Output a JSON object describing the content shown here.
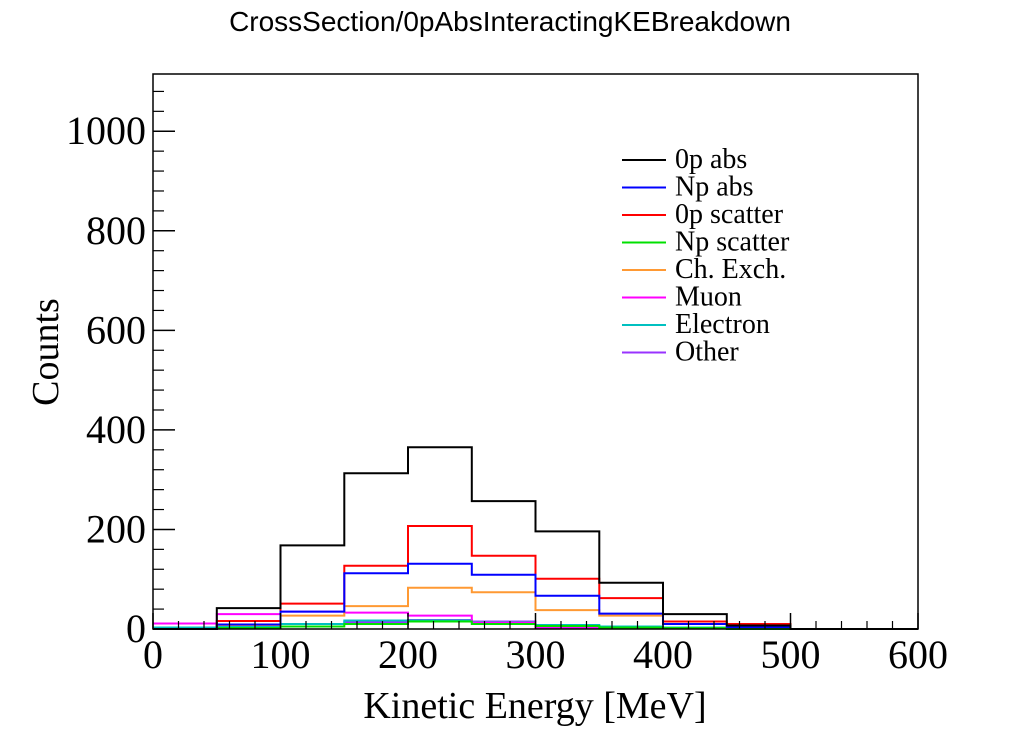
{
  "title": "CrossSection/0pAbsInteractingKEBreakdown",
  "chart_data": {
    "type": "histogram-step",
    "title": "CrossSection/0pAbsInteractingKEBreakdown",
    "xlabel": "Kinetic Energy [MeV]",
    "ylabel": "Counts",
    "xlim": [
      0,
      600
    ],
    "ylim": [
      0,
      1115
    ],
    "x_ticks": [
      0,
      100,
      200,
      300,
      400,
      500,
      600
    ],
    "y_ticks": [
      0,
      200,
      400,
      600,
      800,
      1000
    ],
    "bin_edges": [
      0,
      50,
      100,
      150,
      200,
      250,
      300,
      350,
      400,
      450,
      500,
      550,
      600
    ],
    "legend_position": "top-right",
    "series": [
      {
        "name": "0p abs",
        "color": "#000000",
        "values": [
          0,
          42,
          168,
          313,
          365,
          257,
          196,
          93,
          30,
          7,
          0,
          0
        ]
      },
      {
        "name": "Np abs",
        "color": "#0000ff",
        "values": [
          0,
          9,
          35,
          112,
          131,
          109,
          67,
          31,
          10,
          4,
          0,
          0
        ]
      },
      {
        "name": "0p scatter",
        "color": "#ff0000",
        "values": [
          0,
          16,
          51,
          127,
          207,
          147,
          101,
          62,
          15,
          10,
          0,
          0
        ]
      },
      {
        "name": "Np scatter",
        "color": "#00e000",
        "values": [
          0,
          2,
          5,
          10,
          15,
          10,
          6,
          3,
          2,
          0,
          0,
          0
        ]
      },
      {
        "name": "Ch. Exch.",
        "color": "#ff9933",
        "values": [
          0,
          8,
          27,
          46,
          83,
          74,
          38,
          27,
          10,
          3,
          0,
          0
        ]
      },
      {
        "name": "Muon",
        "color": "#ff00ff",
        "values": [
          11,
          30,
          35,
          33,
          27,
          13,
          3,
          3,
          2,
          1,
          0,
          0
        ]
      },
      {
        "name": "Electron",
        "color": "#00c0c0",
        "values": [
          3,
          5,
          10,
          17,
          17,
          14,
          8,
          5,
          3,
          1,
          0,
          0
        ]
      },
      {
        "name": "Other",
        "color": "#9933ff",
        "values": [
          0,
          3,
          10,
          14,
          18,
          15,
          5,
          4,
          2,
          1,
          0,
          0
        ]
      }
    ]
  }
}
